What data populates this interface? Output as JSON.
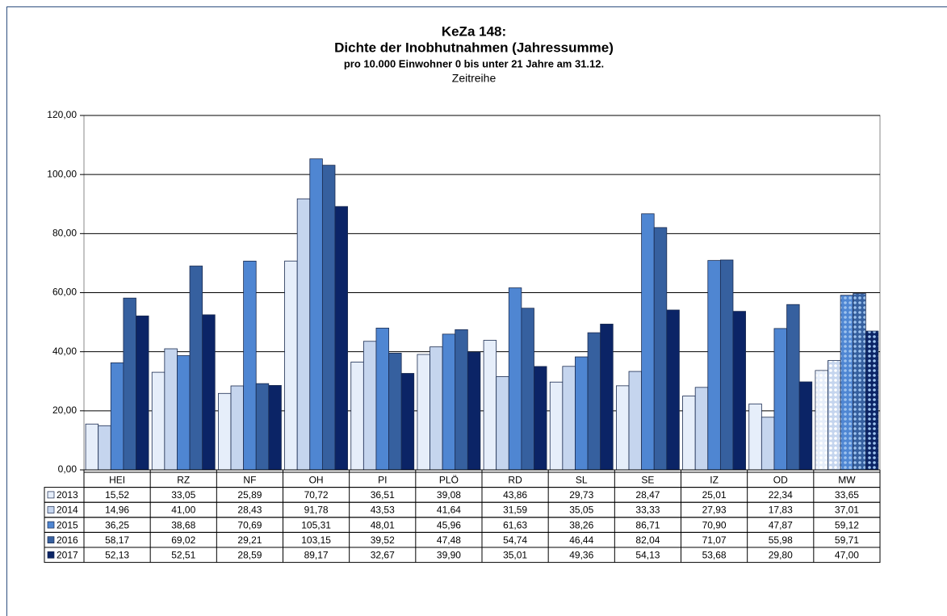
{
  "chart_data": {
    "type": "bar",
    "title": "KeZa 148:",
    "subtitle": "Dichte der Inobhutnahmen (Jahressumme)",
    "subtitle2": "pro 10.000 Einwohner 0 bis unter 21 Jahre am 31.12.",
    "subtitle3": "Zeitreihe",
    "categories": [
      "HEI",
      "RZ",
      "NF",
      "OH",
      "PI",
      "PLÖ",
      "RD",
      "SL",
      "SE",
      "IZ",
      "OD",
      "MW"
    ],
    "series": [
      {
        "name": "2013",
        "color": "#e6eefa",
        "values": [
          15.52,
          33.05,
          25.89,
          70.72,
          36.51,
          39.08,
          43.86,
          29.73,
          28.47,
          25.01,
          22.34,
          33.65
        ],
        "value_labels": [
          "15,52",
          "33,05",
          "25,89",
          "70,72",
          "36,51",
          "39,08",
          "43,86",
          "29,73",
          "28,47",
          "25,01",
          "22,34",
          "33,65"
        ]
      },
      {
        "name": "2014",
        "color": "#c5d5ee",
        "values": [
          14.96,
          41.0,
          28.43,
          91.78,
          43.53,
          41.64,
          31.59,
          35.05,
          33.33,
          27.93,
          17.83,
          37.01
        ],
        "value_labels": [
          "14,96",
          "41,00",
          "28,43",
          "91,78",
          "43,53",
          "41,64",
          "31,59",
          "35,05",
          "33,33",
          "27,93",
          "17,83",
          "37,01"
        ]
      },
      {
        "name": "2015",
        "color": "#4f86d2",
        "values": [
          36.25,
          38.68,
          70.69,
          105.31,
          48.01,
          45.96,
          61.63,
          38.26,
          86.71,
          70.9,
          47.87,
          59.12
        ],
        "value_labels": [
          "36,25",
          "38,68",
          "70,69",
          "105,31",
          "48,01",
          "45,96",
          "61,63",
          "38,26",
          "86,71",
          "70,90",
          "47,87",
          "59,12"
        ]
      },
      {
        "name": "2016",
        "color": "#36609f",
        "values": [
          58.17,
          69.02,
          29.21,
          103.15,
          39.52,
          47.48,
          54.74,
          46.44,
          82.04,
          71.07,
          55.98,
          59.71
        ],
        "value_labels": [
          "58,17",
          "69,02",
          "29,21",
          "103,15",
          "39,52",
          "47,48",
          "54,74",
          "46,44",
          "82,04",
          "71,07",
          "55,98",
          "59,71"
        ]
      },
      {
        "name": "2017",
        "color": "#0b2466",
        "values": [
          52.13,
          52.51,
          28.59,
          89.17,
          32.67,
          39.9,
          35.01,
          49.36,
          54.13,
          53.68,
          29.8,
          47.0
        ],
        "value_labels": [
          "52,13",
          "52,51",
          "28,59",
          "89,17",
          "32,67",
          "39,90",
          "35,01",
          "49,36",
          "54,13",
          "53,68",
          "29,80",
          "47,00"
        ]
      }
    ],
    "ylim": [
      0,
      120
    ],
    "yticks": [
      {
        "value": 0,
        "label": "0,00"
      },
      {
        "value": 20,
        "label": "20,00"
      },
      {
        "value": 40,
        "label": "40,00"
      },
      {
        "value": 60,
        "label": "60,00"
      },
      {
        "value": 80,
        "label": "80,00"
      },
      {
        "value": 100,
        "label": "100,00"
      },
      {
        "value": 120,
        "label": "120,00"
      }
    ],
    "grid": true
  }
}
